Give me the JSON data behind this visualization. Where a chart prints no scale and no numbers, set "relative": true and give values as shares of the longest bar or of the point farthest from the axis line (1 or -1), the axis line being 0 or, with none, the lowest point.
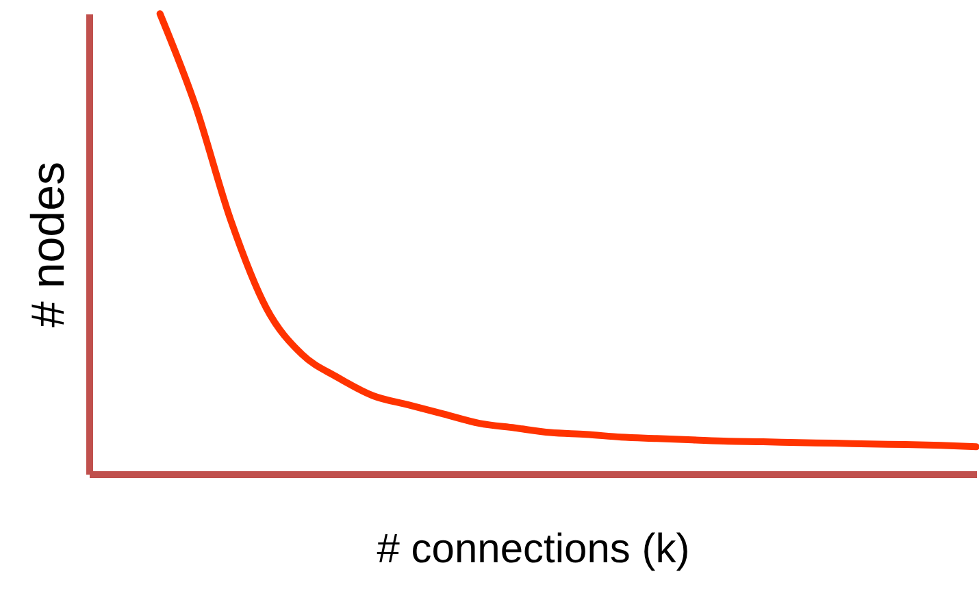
{
  "chart_data": {
    "type": "line",
    "relative": true,
    "xlabel": "# connections (k)",
    "ylabel": "# nodes",
    "categories": [
      null,
      null,
      null,
      null,
      null,
      null,
      null,
      null,
      null,
      null,
      null,
      null,
      null,
      null,
      null,
      null,
      null,
      null,
      null,
      null,
      null,
      null,
      null,
      null,
      null,
      null
    ],
    "series": [
      {
        "color": "#ff3300",
        "values": [
          null,
          null,
          1,
          0.8,
          0.55,
          0.36,
          0.26,
          0.21,
          0.17,
          0.15,
          0.13,
          0.11,
          0.1,
          0.09,
          0.086,
          0.08,
          0.077,
          0.074,
          0.071,
          0.07,
          0.068,
          0.067,
          0.065,
          0.064,
          0.062,
          0.059
        ]
      }
    ],
    "grid": false,
    "marker": "none",
    "line_style": "solid"
  }
}
